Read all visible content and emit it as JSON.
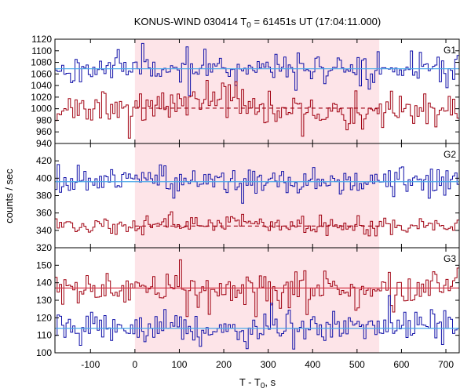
{
  "chart_data": {
    "type": "line",
    "title": {
      "prefix": "KONUS-WIND 030414 T",
      "sub": "0",
      "suffix": " = 61451s UT (17:04:11.000)"
    },
    "xlabel": {
      "prefix": "T - T",
      "sub": "0",
      "suffix": ", s"
    },
    "ylabel": "counts / sec",
    "xlim": [
      -180,
      730
    ],
    "x_ticks": [
      -100,
      0,
      100,
      200,
      300,
      400,
      500,
      600,
      700
    ],
    "shaded_interval": {
      "x": [
        0,
        550
      ],
      "color": "#fde4e8"
    },
    "bin_width": 5,
    "colors": {
      "blue": "#1010a8",
      "red": "#a00010",
      "fit_blue": "#4aa8e8",
      "fit_red": "#d63a4a",
      "frame": "#000000"
    },
    "panels": [
      {
        "label": "G1",
        "ylim": [
          940,
          1120
        ],
        "y_ticks": [
          940,
          960,
          980,
          1000,
          1020,
          1040,
          1060,
          1080,
          1100,
          1120
        ],
        "series": [
          {
            "color": "#1010a8",
            "base": 1070,
            "noise": 12,
            "bump": 0,
            "seed": 11
          },
          {
            "color": "#a00010",
            "base": 995,
            "noise": 14,
            "bump": 25,
            "seed": 23
          }
        ],
        "fits": [
          {
            "color": "#4aa8e8",
            "y": 1069,
            "dashed": false,
            "x": [
              -180,
              730
            ]
          },
          {
            "color": "#a00010",
            "y": 1001,
            "dashed": true,
            "x": [
              0,
              550
            ]
          }
        ]
      },
      {
        "label": "G2",
        "ylim": [
          320,
          440
        ],
        "y_ticks": [
          320,
          340,
          360,
          380,
          400,
          420
        ],
        "series": [
          {
            "color": "#1010a8",
            "base": 396,
            "noise": 8,
            "bump": 0,
            "seed": 37
          },
          {
            "color": "#a00010",
            "base": 345,
            "noise": 5,
            "bump": 6,
            "seed": 41
          }
        ],
        "fits": [
          {
            "color": "#4aa8e8",
            "y": 396,
            "dashed": false,
            "x": [
              -180,
              730
            ]
          },
          {
            "color": "#a00010",
            "y": 345,
            "dashed": true,
            "x": [
              0,
              550
            ]
          }
        ]
      },
      {
        "label": "G3",
        "ylim": [
          100,
          160
        ],
        "y_ticks": [
          100,
          110,
          120,
          130,
          140,
          150
        ],
        "series": [
          {
            "color": "#a00010",
            "base": 136,
            "noise": 5,
            "bump": 0,
            "seed": 53
          },
          {
            "color": "#1010a8",
            "base": 114,
            "noise": 4,
            "bump": 0,
            "seed": 67
          }
        ],
        "fits": [
          {
            "color": "#d63a4a",
            "y": 137,
            "dashed": false,
            "x": [
              -180,
              730
            ]
          },
          {
            "color": "#4aa8e8",
            "y": 114,
            "dashed": false,
            "x": [
              -180,
              730
            ]
          }
        ]
      }
    ]
  }
}
